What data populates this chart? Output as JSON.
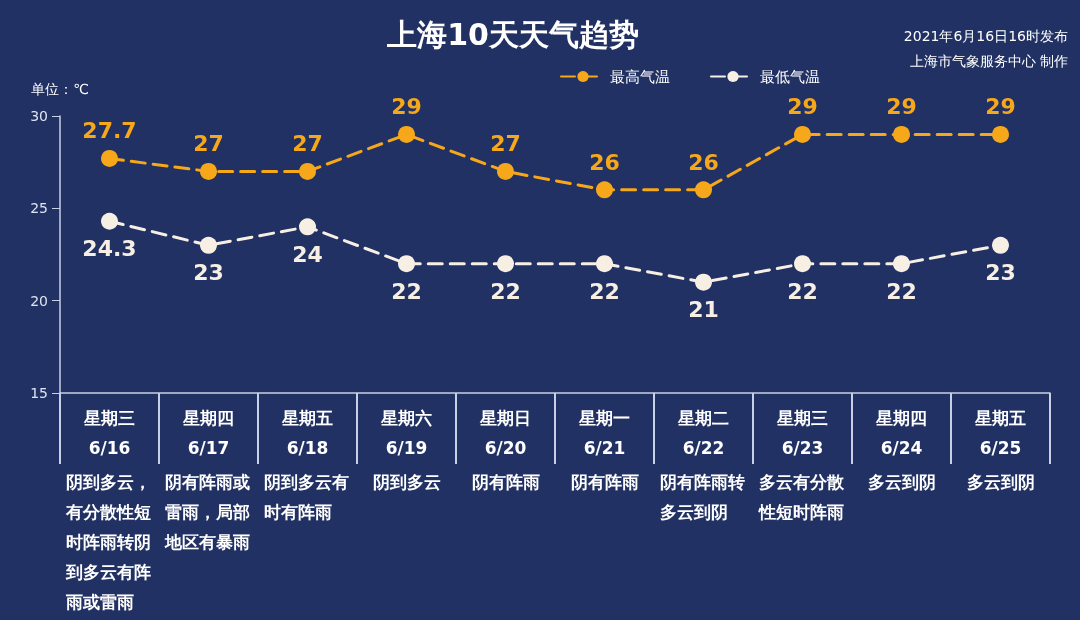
{
  "chart_data": {
    "type": "line",
    "title": "上海10天天气趋势",
    "ylabel": "单位：℃",
    "categories": [
      "星期三\n6/16",
      "星期四\n6/17",
      "星期五\n6/18",
      "星期六\n6/19",
      "星期日\n6/20",
      "星期一\n6/21",
      "星期二\n6/22",
      "星期三\n6/23",
      "星期四\n6/24",
      "星期五\n6/25"
    ],
    "series": [
      {
        "name": "最高气温",
        "color": "#f6a81a",
        "values": [
          27.7,
          27,
          27,
          29,
          27,
          26,
          26,
          29,
          29,
          29
        ]
      },
      {
        "name": "最低气温",
        "color": "#f7efe3",
        "values": [
          24.3,
          23,
          24,
          22,
          22,
          22,
          21,
          22,
          22,
          23
        ]
      }
    ],
    "ylim": [
      15,
      30
    ],
    "yticks": [
      15,
      20,
      25,
      30
    ],
    "legend": "top",
    "marker": "circle",
    "line_style": "dashed",
    "data_labels": true,
    "annotations": [
      "2021年6月16日16时发布",
      "上海市气象服务中心 制作",
      "阴到多云，有分散性短时阵雨转阴到多云有阵雨或雷雨",
      "阴有阵雨或雷雨，局部地区有暴雨",
      "阴到多云有时有阵雨",
      "阴到多云",
      "阴有阵雨",
      "阴有阵雨",
      "阴有阵雨转多云到阴",
      "多云有分散性短时阵雨",
      "多云到阴",
      "多云到阴"
    ]
  }
}
